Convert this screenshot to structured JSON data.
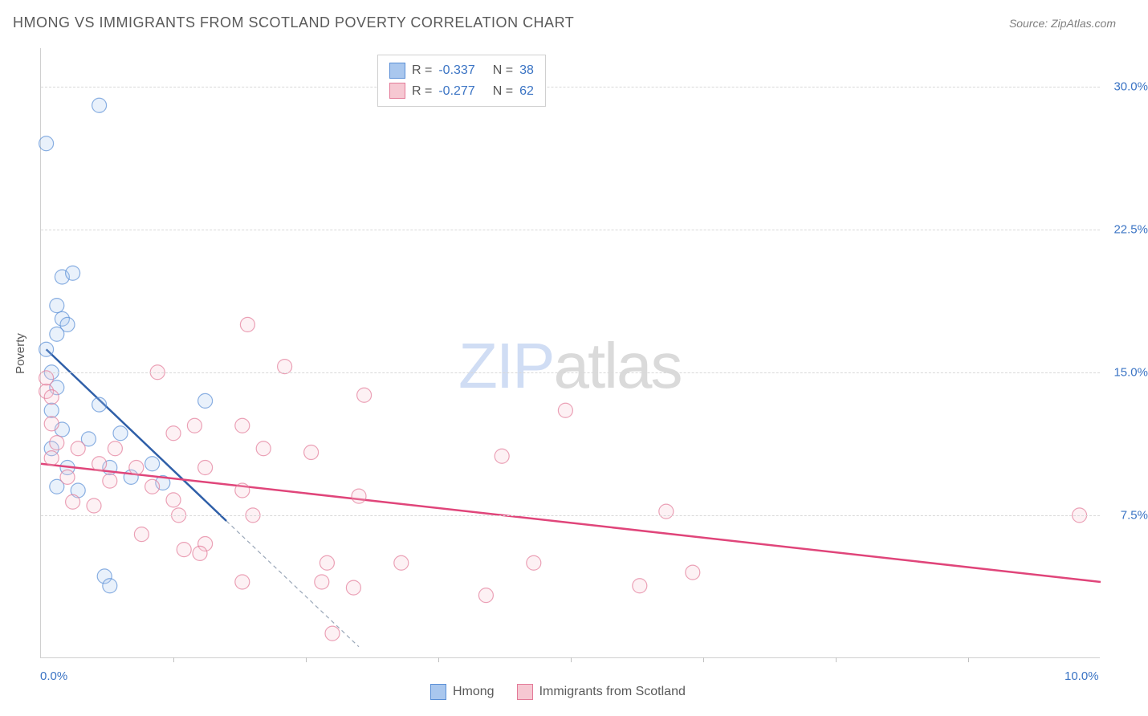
{
  "title": "HMONG VS IMMIGRANTS FROM SCOTLAND POVERTY CORRELATION CHART",
  "source_label": "Source: ZipAtlas.com",
  "watermark": {
    "part1": "ZIP",
    "part2": "atlas"
  },
  "ylabel": "Poverty",
  "chart": {
    "type": "scatter",
    "background_color": "#ffffff",
    "grid_color": "#d8d8d8",
    "axis_color": "#d0d0d0",
    "xlim": [
      0.0,
      10.0
    ],
    "ylim": [
      0.0,
      32.0
    ],
    "x_ticks_minor": [
      1.25,
      2.5,
      3.75,
      5.0,
      6.25,
      7.5,
      8.75
    ],
    "y_gridlines": [
      7.5,
      15.0,
      22.5,
      30.0
    ],
    "y_tick_labels": [
      "7.5%",
      "15.0%",
      "22.5%",
      "30.0%"
    ],
    "x_tick_labels": {
      "min": "0.0%",
      "max": "10.0%"
    },
    "x_label_color": "#3b74c4",
    "y_label_color": "#3b74c4",
    "marker_radius": 9,
    "line_width": 2.5,
    "dash_pattern": "5,4",
    "series": [
      {
        "name": "Hmong",
        "color_fill": "#a9c7ee",
        "color_stroke": "#5a8fd6",
        "line_color": "#2f5fa8",
        "R": "-0.337",
        "N": "38",
        "trend": {
          "x1": 0.05,
          "y1": 16.2,
          "x2": 1.75,
          "y2": 7.2
        },
        "trend_ext": {
          "x1": 1.75,
          "y1": 7.2,
          "x2": 3.0,
          "y2": 0.6
        },
        "points": [
          [
            0.55,
            29.0
          ],
          [
            0.05,
            27.0
          ],
          [
            0.2,
            20.0
          ],
          [
            0.3,
            20.2
          ],
          [
            0.15,
            18.5
          ],
          [
            0.2,
            17.8
          ],
          [
            0.25,
            17.5
          ],
          [
            0.15,
            17.0
          ],
          [
            0.05,
            16.2
          ],
          [
            0.1,
            15.0
          ],
          [
            0.15,
            14.2
          ],
          [
            0.55,
            13.3
          ],
          [
            1.55,
            13.5
          ],
          [
            0.1,
            13.0
          ],
          [
            0.2,
            12.0
          ],
          [
            0.45,
            11.5
          ],
          [
            0.75,
            11.8
          ],
          [
            1.05,
            10.2
          ],
          [
            0.1,
            11.0
          ],
          [
            0.25,
            10.0
          ],
          [
            0.65,
            10.0
          ],
          [
            0.85,
            9.5
          ],
          [
            1.15,
            9.2
          ],
          [
            0.15,
            9.0
          ],
          [
            0.35,
            8.8
          ],
          [
            0.6,
            4.3
          ],
          [
            0.65,
            3.8
          ]
        ]
      },
      {
        "name": "Immigrants from Scotland",
        "color_fill": "#f6c8d2",
        "color_stroke": "#e37a98",
        "line_color": "#e0457a",
        "R": "-0.277",
        "N": "62",
        "trend": {
          "x1": 0.0,
          "y1": 10.2,
          "x2": 10.0,
          "y2": 4.0
        },
        "points": [
          [
            1.95,
            17.5
          ],
          [
            2.3,
            15.3
          ],
          [
            1.1,
            15.0
          ],
          [
            3.05,
            13.8
          ],
          [
            0.05,
            14.7
          ],
          [
            0.05,
            14.0
          ],
          [
            0.1,
            13.7
          ],
          [
            4.95,
            13.0
          ],
          [
            1.9,
            12.2
          ],
          [
            1.45,
            12.2
          ],
          [
            1.25,
            11.8
          ],
          [
            2.1,
            11.0
          ],
          [
            2.55,
            10.8
          ],
          [
            0.15,
            11.3
          ],
          [
            0.35,
            11.0
          ],
          [
            4.35,
            10.6
          ],
          [
            0.1,
            10.5
          ],
          [
            0.55,
            10.2
          ],
          [
            0.9,
            10.0
          ],
          [
            1.55,
            10.0
          ],
          [
            0.25,
            9.5
          ],
          [
            0.65,
            9.3
          ],
          [
            1.05,
            9.0
          ],
          [
            1.9,
            8.8
          ],
          [
            3.0,
            8.5
          ],
          [
            0.3,
            8.2
          ],
          [
            0.5,
            8.0
          ],
          [
            1.3,
            7.5
          ],
          [
            2.0,
            7.5
          ],
          [
            5.9,
            7.7
          ],
          [
            9.8,
            7.5
          ],
          [
            0.95,
            6.5
          ],
          [
            1.55,
            6.0
          ],
          [
            1.5,
            5.5
          ],
          [
            1.35,
            5.7
          ],
          [
            2.7,
            5.0
          ],
          [
            3.4,
            5.0
          ],
          [
            4.65,
            5.0
          ],
          [
            5.65,
            3.8
          ],
          [
            2.65,
            4.0
          ],
          [
            2.95,
            3.7
          ],
          [
            6.15,
            4.5
          ],
          [
            4.2,
            3.3
          ],
          [
            2.75,
            1.3
          ],
          [
            1.9,
            4.0
          ],
          [
            1.25,
            8.3
          ],
          [
            0.7,
            11.0
          ],
          [
            0.1,
            12.3
          ]
        ]
      }
    ]
  },
  "legend_top": {
    "rows": [
      {
        "R_label": "R =",
        "N_label": "N ="
      }
    ]
  },
  "legend_bottom": {
    "items": [
      "Hmong",
      "Immigrants from Scotland"
    ]
  }
}
